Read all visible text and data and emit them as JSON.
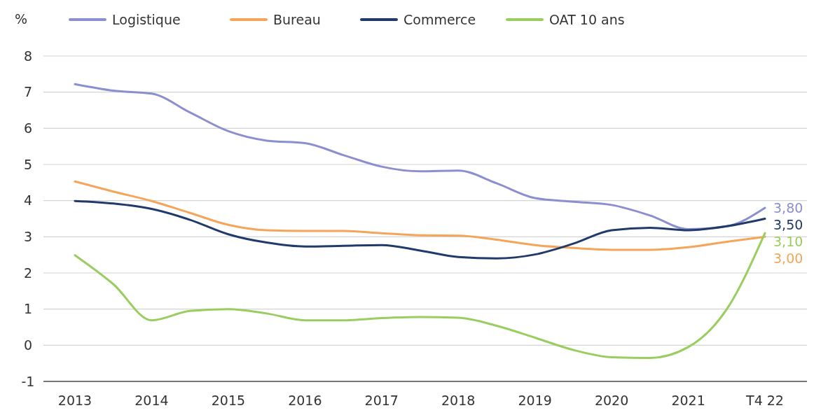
{
  "chart_data": {
    "type": "line",
    "ylabel": "%",
    "categories": [
      "2013",
      null,
      "2014",
      null,
      "2015",
      null,
      "2016",
      null,
      "2017",
      null,
      "2018",
      null,
      "2019",
      null,
      "2020",
      null,
      "2021",
      null,
      "T4 22"
    ],
    "series": [
      {
        "name": "Logistique",
        "color": "#8b8fcf",
        "values": [
          7.22,
          7.04,
          6.96,
          6.44,
          5.92,
          5.66,
          5.59,
          5.26,
          4.94,
          4.81,
          4.83,
          4.48,
          4.07,
          3.97,
          3.88,
          3.59,
          3.21,
          3.29,
          3.8
        ],
        "value_labels": [
          null,
          null,
          null,
          null,
          null,
          null,
          null,
          null,
          null,
          null,
          null,
          null,
          null,
          null,
          null,
          null,
          null,
          null,
          "3,80"
        ]
      },
      {
        "name": "Bureau",
        "color": "#f4a55a",
        "values": [
          4.53,
          4.25,
          3.99,
          3.66,
          3.33,
          3.18,
          3.16,
          3.16,
          3.1,
          3.04,
          3.03,
          2.92,
          2.77,
          2.69,
          2.64,
          2.64,
          2.71,
          2.86,
          3.0
        ],
        "value_labels": [
          null,
          null,
          null,
          null,
          null,
          null,
          null,
          null,
          null,
          null,
          null,
          null,
          null,
          null,
          null,
          null,
          null,
          null,
          "3,00"
        ]
      },
      {
        "name": "Commerce",
        "color": "#1f3a6b",
        "values": [
          3.99,
          3.92,
          3.77,
          3.47,
          3.07,
          2.84,
          2.73,
          2.75,
          2.77,
          2.62,
          2.44,
          2.4,
          2.51,
          2.81,
          3.18,
          3.25,
          3.18,
          3.29,
          3.5
        ],
        "value_labels": [
          null,
          null,
          null,
          null,
          null,
          null,
          null,
          null,
          null,
          null,
          null,
          null,
          null,
          null,
          null,
          null,
          null,
          null,
          "3,50"
        ]
      },
      {
        "name": "OAT 10 ans",
        "color": "#9acd5f",
        "values": [
          2.49,
          1.69,
          0.69,
          0.95,
          1.0,
          0.88,
          0.69,
          0.69,
          0.75,
          0.78,
          0.76,
          0.54,
          0.21,
          -0.13,
          -0.33,
          -0.35,
          -0.05,
          0.99,
          3.1
        ],
        "value_labels": [
          null,
          null,
          null,
          null,
          null,
          null,
          null,
          null,
          null,
          null,
          null,
          null,
          null,
          null,
          null,
          null,
          null,
          null,
          "3,10"
        ]
      }
    ],
    "ylim": [
      -1,
      8
    ],
    "yticks": [
      -1,
      0,
      1,
      2,
      3,
      4,
      5,
      6,
      7,
      8
    ],
    "grid": "y",
    "legend": "top",
    "marker": "none",
    "line_style": "solid"
  }
}
